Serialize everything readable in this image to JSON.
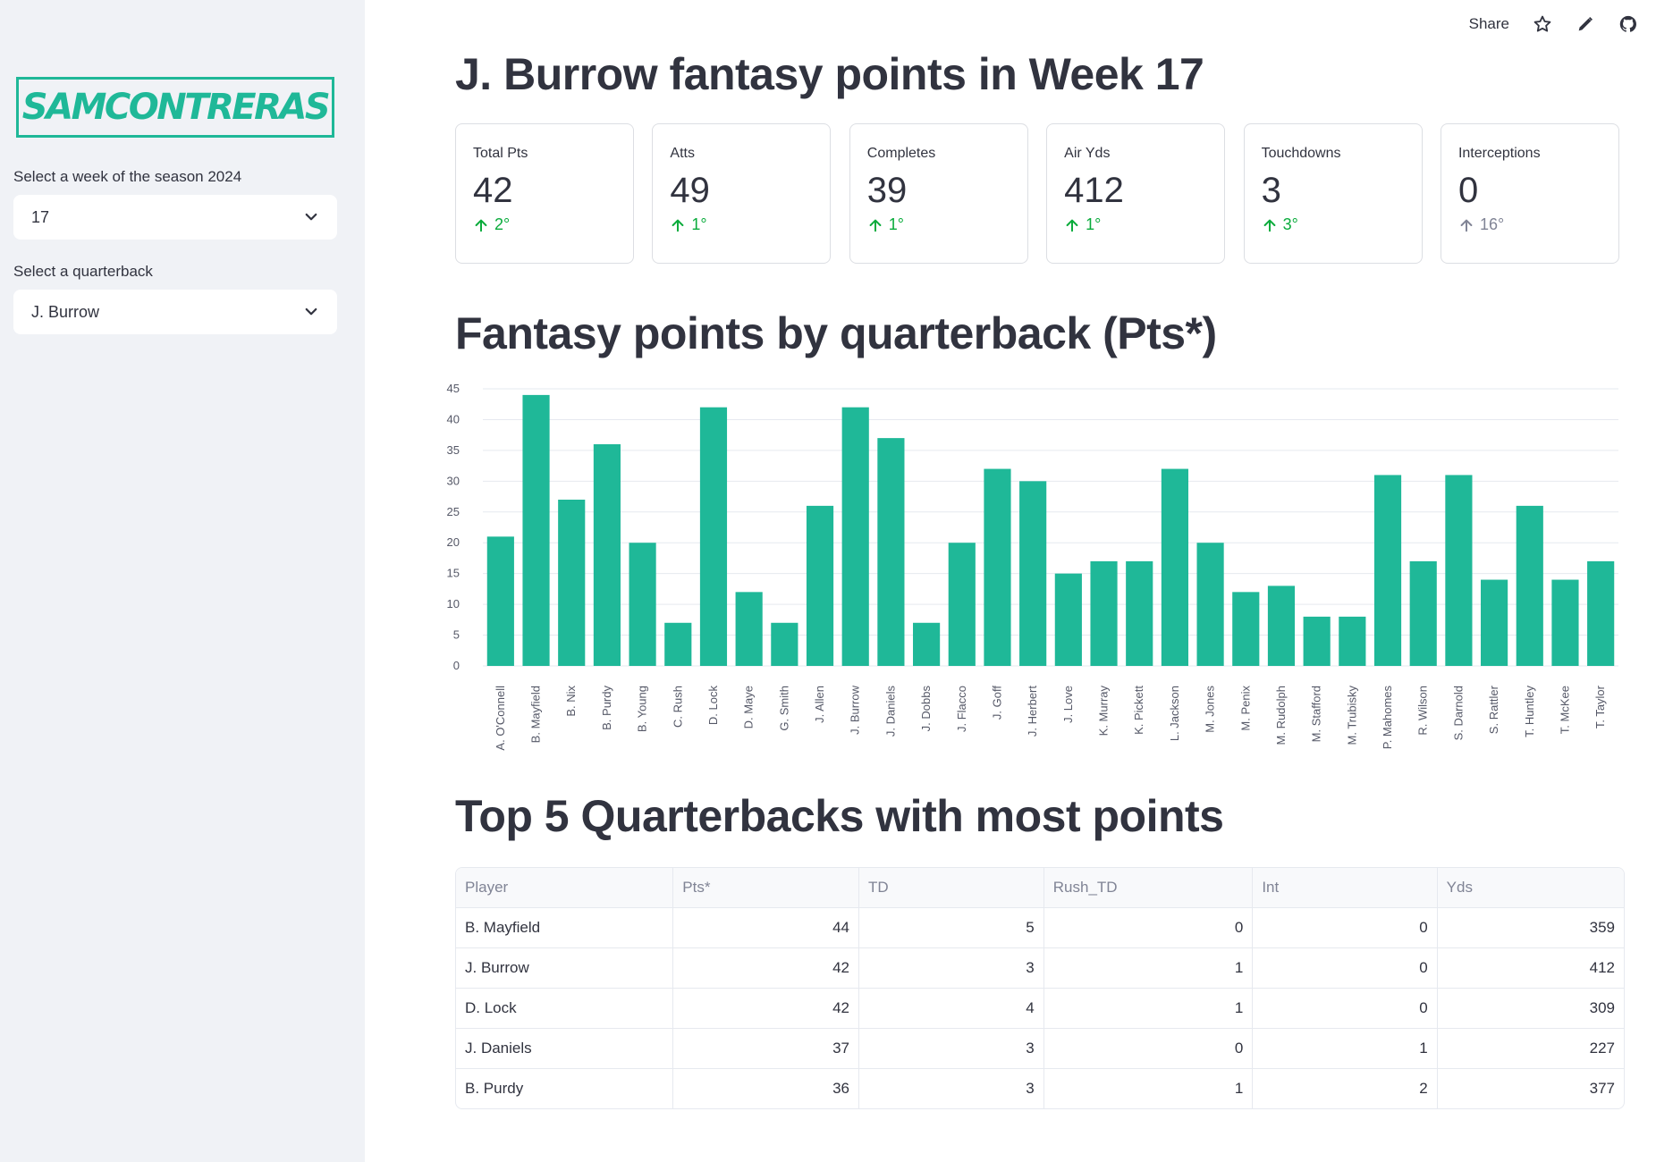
{
  "sidebar": {
    "logo_text": "SAMCONTRERAS",
    "week_label": "Select a week of the season 2024",
    "week_value": "17",
    "qb_label": "Select a quarterback",
    "qb_value": "J. Burrow"
  },
  "toolbar": {
    "share_label": "Share",
    "icons": [
      "star-icon",
      "edit-icon",
      "github-icon"
    ]
  },
  "page_title": "J. Burrow fantasy points in Week 17",
  "metrics": [
    {
      "label": "Total Pts",
      "value": "42",
      "delta": "2°",
      "delta_state": "up"
    },
    {
      "label": "Atts",
      "value": "49",
      "delta": "1°",
      "delta_state": "up"
    },
    {
      "label": "Completes",
      "value": "39",
      "delta": "1°",
      "delta_state": "up"
    },
    {
      "label": "Air Yds",
      "value": "412",
      "delta": "1°",
      "delta_state": "up"
    },
    {
      "label": "Touchdowns",
      "value": "3",
      "delta": "3°",
      "delta_state": "up"
    },
    {
      "label": "Interceptions",
      "value": "0",
      "delta": "16°",
      "delta_state": "off"
    }
  ],
  "chart_title": "Fantasy points by quarterback (Pts*)",
  "chart_data": {
    "type": "bar",
    "categories": [
      "A. O'Connell",
      "B. Mayfield",
      "B. Nix",
      "B. Purdy",
      "B. Young",
      "C. Rush",
      "D. Lock",
      "D. Maye",
      "G. Smith",
      "J. Allen",
      "J. Burrow",
      "J. Daniels",
      "J. Dobbs",
      "J. Flacco",
      "J. Goff",
      "J. Herbert",
      "J. Love",
      "K. Murray",
      "K. Pickett",
      "L. Jackson",
      "M. Jones",
      "M. Penix",
      "M. Rudolph",
      "M. Stafford",
      "M. Trubisky",
      "P. Mahomes",
      "R. Wilson",
      "S. Darnold",
      "S. Rattler",
      "T. Huntley",
      "T. McKee",
      "T. Taylor"
    ],
    "values": [
      21,
      44,
      27,
      36,
      20,
      7,
      42,
      12,
      7,
      26,
      42,
      37,
      7,
      20,
      32,
      30,
      15,
      17,
      17,
      32,
      20,
      12,
      13,
      8,
      8,
      31,
      17,
      31,
      14,
      26,
      14,
      17
    ],
    "yticks": [
      0,
      5,
      10,
      15,
      20,
      25,
      30,
      35,
      40,
      45
    ],
    "ylim": [
      0,
      45
    ],
    "grid": true,
    "color": "#1fb898"
  },
  "table_title": "Top 5 Quarterbacks with most points",
  "table": {
    "columns": [
      "Player",
      "Pts*",
      "TD",
      "Rush_TD",
      "Int",
      "Yds"
    ],
    "rows": [
      [
        "B. Mayfield",
        "44",
        "5",
        "0",
        "0",
        "359"
      ],
      [
        "J. Burrow",
        "42",
        "3",
        "1",
        "0",
        "412"
      ],
      [
        "D. Lock",
        "42",
        "4",
        "1",
        "0",
        "309"
      ],
      [
        "J. Daniels",
        "37",
        "3",
        "0",
        "1",
        "227"
      ],
      [
        "B. Purdy",
        "36",
        "3",
        "1",
        "2",
        "377"
      ]
    ]
  }
}
